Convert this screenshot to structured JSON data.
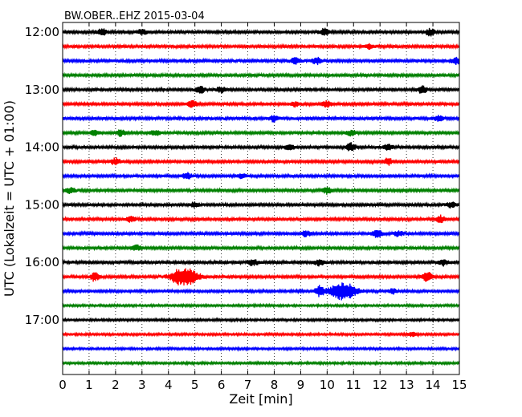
{
  "chart_data": {
    "type": "line",
    "title": "BW.OBER..EHZ 2015-03-04",
    "xlabel": "Zeit  [min]",
    "ylabel": "UTC (Lokalzeit = UTC + 01:00)",
    "xlim": [
      0,
      15
    ],
    "x_ticks": [
      "0",
      "1",
      "2",
      "3",
      "4",
      "5",
      "6",
      "7",
      "8",
      "9",
      "10",
      "11",
      "12",
      "13",
      "14",
      "15"
    ],
    "y_tick_labels": [
      "12:00",
      "13:00",
      "14:00",
      "15:00",
      "16:00",
      "17:00"
    ],
    "grid": "vertical dotted",
    "series_colors": [
      "#000000",
      "#ff0000",
      "#0000ff",
      "#008000"
    ],
    "traces": [
      {
        "start": "12:00",
        "color": "#000000",
        "base_amplitude": 0.25,
        "events": [
          [
            1.5,
            0.5
          ],
          [
            3,
            0.4
          ],
          [
            9.9,
            0.5
          ],
          [
            13.9,
            0.5
          ]
        ]
      },
      {
        "start": "12:15",
        "color": "#ff0000",
        "base_amplitude": 0.25,
        "events": [
          [
            11.6,
            0.4
          ]
        ]
      },
      {
        "start": "12:30",
        "color": "#0000ff",
        "base_amplitude": 0.28,
        "events": [
          [
            8.8,
            0.45
          ],
          [
            9.6,
            0.5
          ],
          [
            14.9,
            0.45
          ]
        ]
      },
      {
        "start": "12:45",
        "color": "#008000",
        "base_amplitude": 0.25,
        "events": []
      },
      {
        "start": "13:00",
        "color": "#000000",
        "base_amplitude": 0.25,
        "events": [
          [
            5.2,
            0.6
          ],
          [
            6,
            0.4
          ],
          [
            13.6,
            0.6
          ]
        ]
      },
      {
        "start": "13:15",
        "color": "#ff0000",
        "base_amplitude": 0.25,
        "events": [
          [
            4.9,
            0.5
          ],
          [
            8.8,
            0.4
          ],
          [
            10,
            0.45
          ]
        ]
      },
      {
        "start": "13:30",
        "color": "#0000ff",
        "base_amplitude": 0.28,
        "events": [
          [
            8,
            0.45
          ],
          [
            14.2,
            0.4
          ]
        ]
      },
      {
        "start": "13:45",
        "color": "#008000",
        "base_amplitude": 0.25,
        "events": [
          [
            1.2,
            0.4
          ],
          [
            2.2,
            0.5
          ],
          [
            3.5,
            0.4
          ],
          [
            10.9,
            0.4
          ]
        ]
      },
      {
        "start": "14:00",
        "color": "#000000",
        "base_amplitude": 0.25,
        "events": [
          [
            8.6,
            0.4
          ],
          [
            10.9,
            0.6
          ],
          [
            12.3,
            0.45
          ]
        ]
      },
      {
        "start": "14:15",
        "color": "#ff0000",
        "base_amplitude": 0.25,
        "events": [
          [
            2,
            0.5
          ],
          [
            12.3,
            0.45
          ]
        ]
      },
      {
        "start": "14:30",
        "color": "#0000ff",
        "base_amplitude": 0.25,
        "events": [
          [
            4.7,
            0.45
          ],
          [
            6.8,
            0.4
          ]
        ]
      },
      {
        "start": "14:45",
        "color": "#008000",
        "base_amplitude": 0.25,
        "events": [
          [
            0.3,
            0.4
          ],
          [
            10,
            0.45
          ]
        ]
      },
      {
        "start": "15:00",
        "color": "#000000",
        "base_amplitude": 0.25,
        "events": [
          [
            5,
            0.4
          ],
          [
            14.7,
            0.4
          ]
        ]
      },
      {
        "start": "15:15",
        "color": "#ff0000",
        "base_amplitude": 0.25,
        "events": [
          [
            2.6,
            0.4
          ],
          [
            14.3,
            0.5
          ]
        ]
      },
      {
        "start": "15:30",
        "color": "#0000ff",
        "base_amplitude": 0.25,
        "events": [
          [
            9.2,
            0.45
          ],
          [
            11.9,
            0.6
          ],
          [
            12.7,
            0.4
          ]
        ]
      },
      {
        "start": "15:45",
        "color": "#008000",
        "base_amplitude": 0.25,
        "events": [
          [
            2.8,
            0.4
          ]
        ]
      },
      {
        "start": "16:00",
        "color": "#000000",
        "base_amplitude": 0.28,
        "events": [
          [
            7.2,
            0.5
          ],
          [
            9.7,
            0.45
          ],
          [
            14.4,
            0.4
          ]
        ]
      },
      {
        "start": "16:15",
        "color": "#ff0000",
        "base_amplitude": 0.25,
        "events": [
          [
            1.2,
            0.6
          ],
          [
            4.6,
            1.4
          ],
          [
            13.8,
            0.9
          ]
        ]
      },
      {
        "start": "16:30",
        "color": "#0000ff",
        "base_amplitude": 0.22,
        "events": [
          [
            9.7,
            0.8
          ],
          [
            10.6,
            1.4
          ],
          [
            12.5,
            0.4
          ]
        ]
      },
      {
        "start": "16:45",
        "color": "#008000",
        "base_amplitude": 0.2,
        "events": []
      },
      {
        "start": "17:00",
        "color": "#000000",
        "base_amplitude": 0.2,
        "events": []
      },
      {
        "start": "17:15",
        "color": "#ff0000",
        "base_amplitude": 0.2,
        "events": [
          [
            13.2,
            0.3
          ]
        ]
      },
      {
        "start": "17:30",
        "color": "#0000ff",
        "base_amplitude": 0.2,
        "events": []
      },
      {
        "start": "17:45",
        "color": "#008000",
        "base_amplitude": 0.2,
        "events": []
      }
    ]
  }
}
